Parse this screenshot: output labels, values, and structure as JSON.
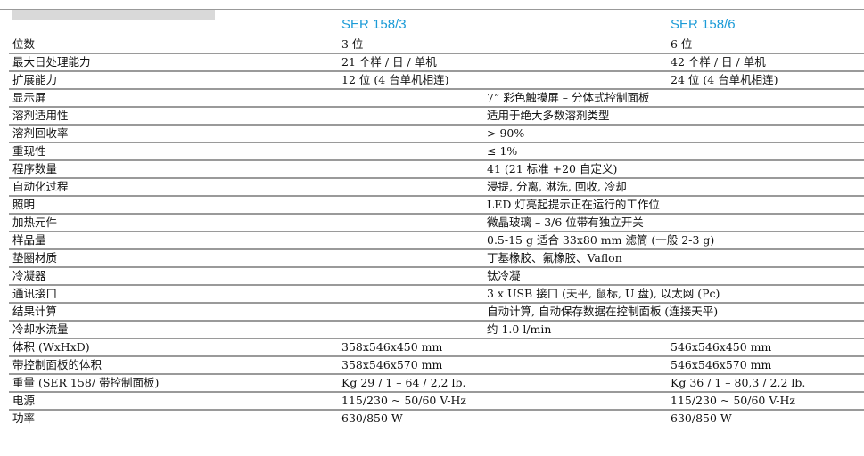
{
  "header": {
    "col1": "SER 158/3",
    "col2": "SER 158/6"
  },
  "rows": [
    {
      "label": "位数",
      "col1": "3 位",
      "col2": "6 位"
    },
    {
      "label": "最大日处理能力",
      "col1": "21 个样 / 日 / 单机",
      "col2": "42 个样 / 日 / 单机"
    },
    {
      "label": "扩展能力",
      "col1": "12 位 (4 台单机相连)",
      "col2": "24 位 (4 台单机相连)"
    },
    {
      "label": "显示屏",
      "merged": "7” 彩色触摸屏 – 分体式控制面板"
    },
    {
      "label": "溶剂适用性",
      "merged": "适用于绝大多数溶剂类型"
    },
    {
      "label": "溶剂回收率",
      "merged": "> 90%"
    },
    {
      "label": "重现性",
      "merged": "≤ 1%"
    },
    {
      "label": "程序数量",
      "merged": "41 (21 标准 +20 自定义)"
    },
    {
      "label": "自动化过程",
      "merged": "浸提, 分离, 淋洗, 回收, 冷却"
    },
    {
      "label": "照明",
      "merged": "LED 灯亮起提示正在运行的工作位"
    },
    {
      "label": "加热元件",
      "merged": "微晶玻璃 – 3/6 位带有独立开关"
    },
    {
      "label": "样品量",
      "merged": "0.5-15 g 适合 33x80 mm 滤筒 (一般 2-3 g)"
    },
    {
      "label": "垫圈材质",
      "merged": "丁基橡胶、氟橡胶、Vaflon"
    },
    {
      "label": "冷凝器",
      "merged": "钛冷凝"
    },
    {
      "label": "通讯接口",
      "merged": "3 x USB 接口 (天平, 鼠标, U 盘), 以太网 (Pc)"
    },
    {
      "label": "结果计算",
      "merged": "自动计算, 自动保存数据在控制面板 (连接天平)"
    },
    {
      "label": "冷却水流量",
      "merged": "约 1.0 l/min"
    },
    {
      "label": "体积 (WxHxD)",
      "col1": "358x546x450 mm",
      "col2": "546x546x450 mm"
    },
    {
      "label": "带控制面板的体积",
      "col1": "358x546x570 mm",
      "col2": "546x546x570 mm"
    },
    {
      "label": "重量 (SER 158/ 带控制面板)",
      "col1": "Kg 29 / 1 – 64 / 2,2 lb.",
      "col2": "Kg 36 / 1 – 80,3 / 2,2 lb."
    },
    {
      "label": "电源",
      "col1": "115/230 ~ 50/60 V-Hz",
      "col2": "115/230 ~ 50/60 V-Hz"
    },
    {
      "label": "功率",
      "col1": "630/850 W",
      "col2": "630/850 W"
    }
  ]
}
